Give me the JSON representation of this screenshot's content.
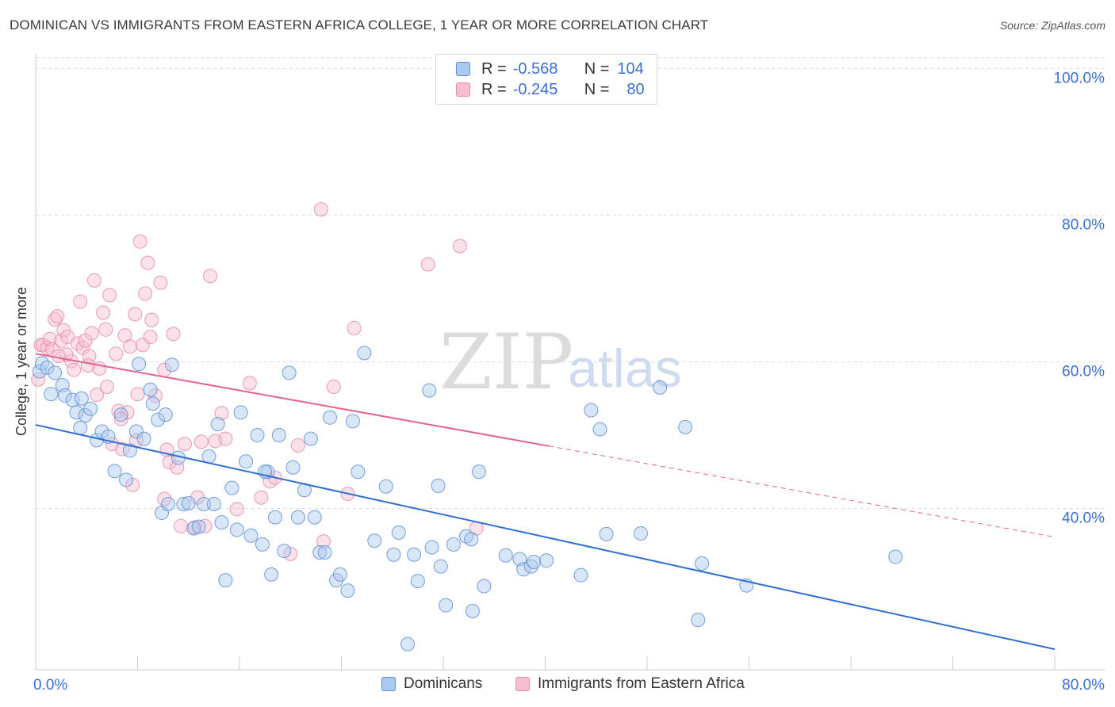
{
  "title": "DOMINICAN VS IMMIGRANTS FROM EASTERN AFRICA COLLEGE, 1 YEAR OR MORE CORRELATION CHART",
  "source": "Source: ZipAtlas.com",
  "watermark": {
    "zip": "ZIP",
    "atlas": "atlas"
  },
  "colors": {
    "blue_fill": "#aac8f0",
    "blue_stroke": "#5d8fd6",
    "blue_line": "#2f6fd3",
    "pink_fill": "#f6bfd0",
    "pink_stroke": "#e889a8",
    "pink_line": "#e5628e",
    "axis_text": "#3a6fd8",
    "grid": "#dddddd"
  },
  "legend": {
    "r_label": "R =",
    "n_label": "N =",
    "rows": [
      {
        "series": "Dominicans",
        "r": "-0.568",
        "n": "104"
      },
      {
        "series": "Immigrants from Eastern Africa",
        "r": "-0.245",
        "n": "80"
      }
    ]
  },
  "chart_data": {
    "type": "scatter",
    "title": "DOMINICAN VS IMMIGRANTS FROM EASTERN AFRICA COLLEGE, 1 YEAR OR MORE CORRELATION CHART",
    "xlabel": "",
    "ylabel": "College, 1 year or more",
    "xlim": [
      0,
      80
    ],
    "ylim": [
      18,
      102
    ],
    "x_tick_labels": [
      "0.0%",
      "80.0%"
    ],
    "y_ticks": [
      40,
      60,
      80,
      100
    ],
    "y_tick_labels": [
      "40.0%",
      "60.0%",
      "80.0%",
      "100.0%"
    ],
    "grid": true,
    "series": [
      {
        "name": "Dominicans",
        "color": "#5d8fd6",
        "trend": {
          "x0": 0,
          "y0": 51.4,
          "x1": 80,
          "y1": 20.8,
          "solid_until": 80
        },
        "points": [
          [
            0.3,
            58.7
          ],
          [
            0.5,
            59.8
          ],
          [
            0.9,
            59.2
          ],
          [
            1.2,
            55.6
          ],
          [
            1.5,
            58.5
          ],
          [
            2.1,
            56.8
          ],
          [
            2.3,
            55.4
          ],
          [
            2.9,
            54.8
          ],
          [
            3.2,
            53.1
          ],
          [
            3.5,
            51.0
          ],
          [
            3.9,
            52.7
          ],
          [
            4.3,
            53.6
          ],
          [
            4.8,
            49.3
          ],
          [
            5.2,
            50.5
          ],
          [
            5.7,
            49.8
          ],
          [
            6.2,
            45.1
          ],
          [
            6.7,
            52.8
          ],
          [
            7.1,
            43.9
          ],
          [
            7.4,
            47.9
          ],
          [
            7.9,
            50.5
          ],
          [
            8.1,
            59.7
          ],
          [
            8.5,
            49.5
          ],
          [
            9.0,
            56.2
          ],
          [
            9.2,
            54.3
          ],
          [
            9.6,
            52.1
          ],
          [
            9.9,
            39.4
          ],
          [
            10.2,
            52.8
          ],
          [
            10.7,
            59.6
          ],
          [
            11.2,
            46.9
          ],
          [
            11.6,
            40.6
          ],
          [
            12.0,
            40.7
          ],
          [
            12.4,
            37.3
          ],
          [
            12.8,
            37.5
          ],
          [
            13.2,
            40.6
          ],
          [
            13.6,
            47.1
          ],
          [
            14.0,
            40.6
          ],
          [
            14.3,
            51.5
          ],
          [
            14.6,
            38.1
          ],
          [
            14.9,
            30.2
          ],
          [
            15.4,
            42.8
          ],
          [
            15.8,
            37.1
          ],
          [
            16.1,
            53.1
          ],
          [
            16.5,
            46.4
          ],
          [
            16.9,
            36.3
          ],
          [
            17.4,
            50.0
          ],
          [
            17.8,
            35.1
          ],
          [
            18.2,
            45.0
          ],
          [
            18.5,
            31.0
          ],
          [
            18.8,
            38.8
          ],
          [
            19.1,
            50.0
          ],
          [
            19.5,
            34.2
          ],
          [
            19.9,
            58.5
          ],
          [
            20.2,
            45.6
          ],
          [
            20.6,
            38.8
          ],
          [
            21.1,
            42.5
          ],
          [
            21.6,
            49.5
          ],
          [
            21.9,
            38.8
          ],
          [
            22.3,
            34.0
          ],
          [
            22.7,
            34.0
          ],
          [
            23.1,
            52.4
          ],
          [
            23.6,
            30.2
          ],
          [
            23.9,
            31.0
          ],
          [
            24.5,
            28.8
          ],
          [
            24.9,
            51.9
          ],
          [
            25.3,
            45.0
          ],
          [
            25.8,
            61.2
          ],
          [
            26.6,
            35.6
          ],
          [
            27.5,
            43.0
          ],
          [
            28.1,
            33.7
          ],
          [
            28.5,
            36.7
          ],
          [
            29.2,
            21.5
          ],
          [
            29.7,
            33.7
          ],
          [
            30.0,
            30.1
          ],
          [
            30.9,
            56.1
          ],
          [
            31.1,
            34.7
          ],
          [
            31.6,
            43.1
          ],
          [
            31.8,
            32.1
          ],
          [
            32.2,
            26.8
          ],
          [
            32.8,
            35.1
          ],
          [
            33.8,
            36.2
          ],
          [
            34.2,
            35.8
          ],
          [
            34.3,
            26.0
          ],
          [
            34.8,
            45.0
          ],
          [
            35.2,
            29.4
          ],
          [
            36.9,
            33.6
          ],
          [
            38.0,
            33.1
          ],
          [
            38.3,
            31.7
          ],
          [
            38.9,
            32.1
          ],
          [
            39.1,
            32.7
          ],
          [
            40.1,
            32.9
          ],
          [
            42.8,
            30.9
          ],
          [
            43.6,
            53.4
          ],
          [
            44.3,
            50.8
          ],
          [
            44.8,
            36.5
          ],
          [
            47.5,
            36.6
          ],
          [
            49.0,
            56.5
          ],
          [
            51.0,
            51.1
          ],
          [
            52.0,
            24.8
          ],
          [
            52.3,
            32.5
          ],
          [
            55.8,
            29.5
          ],
          [
            67.5,
            33.4
          ],
          [
            18.0,
            45.0
          ],
          [
            3.6,
            55.0
          ],
          [
            10.4,
            40.6
          ]
        ]
      },
      {
        "name": "Immigrants from Eastern Africa",
        "color": "#e889a8",
        "trend": {
          "x0": 0,
          "y0": 61.1,
          "x1": 80,
          "y1": 36.1,
          "solid_until": 40.3
        },
        "points": [
          [
            0.2,
            57.6
          ],
          [
            0.4,
            62.3
          ],
          [
            0.6,
            62.3
          ],
          [
            0.9,
            61.9
          ],
          [
            1.1,
            63.1
          ],
          [
            1.3,
            61.7
          ],
          [
            1.5,
            65.8
          ],
          [
            1.7,
            66.2
          ],
          [
            2.0,
            62.9
          ],
          [
            2.2,
            64.3
          ],
          [
            2.5,
            63.4
          ],
          [
            2.8,
            60.1
          ],
          [
            3.0,
            58.9
          ],
          [
            3.3,
            62.5
          ],
          [
            3.5,
            68.2
          ],
          [
            3.7,
            61.9
          ],
          [
            3.9,
            62.9
          ],
          [
            4.2,
            60.8
          ],
          [
            4.4,
            63.9
          ],
          [
            4.6,
            71.1
          ],
          [
            4.8,
            55.5
          ],
          [
            5.0,
            59.1
          ],
          [
            5.3,
            66.7
          ],
          [
            5.5,
            64.4
          ],
          [
            5.8,
            69.1
          ],
          [
            6.0,
            48.8
          ],
          [
            6.3,
            61.1
          ],
          [
            6.5,
            53.3
          ],
          [
            6.8,
            48.1
          ],
          [
            7.0,
            63.6
          ],
          [
            7.2,
            53.1
          ],
          [
            7.4,
            62.1
          ],
          [
            7.6,
            43.2
          ],
          [
            7.8,
            66.5
          ],
          [
            8.0,
            55.6
          ],
          [
            8.2,
            76.4
          ],
          [
            8.4,
            62.3
          ],
          [
            8.6,
            69.3
          ],
          [
            8.8,
            73.5
          ],
          [
            9.1,
            65.7
          ],
          [
            9.4,
            55.4
          ],
          [
            9.8,
            70.8
          ],
          [
            10.1,
            58.9
          ],
          [
            10.3,
            48.0
          ],
          [
            10.5,
            46.3
          ],
          [
            10.8,
            63.8
          ],
          [
            11.1,
            45.6
          ],
          [
            11.4,
            37.6
          ],
          [
            12.5,
            37.4
          ],
          [
            13.0,
            49.1
          ],
          [
            13.3,
            37.6
          ],
          [
            13.7,
            71.7
          ],
          [
            14.1,
            49.2
          ],
          [
            14.6,
            53.0
          ],
          [
            14.9,
            49.5
          ],
          [
            15.8,
            39.9
          ],
          [
            16.8,
            57.1
          ],
          [
            17.7,
            41.5
          ],
          [
            18.4,
            43.7
          ],
          [
            18.8,
            44.2
          ],
          [
            20.0,
            33.8
          ],
          [
            20.6,
            48.6
          ],
          [
            22.4,
            80.8
          ],
          [
            22.6,
            35.5
          ],
          [
            23.4,
            56.6
          ],
          [
            24.5,
            42.0
          ],
          [
            25.0,
            64.6
          ],
          [
            30.8,
            73.3
          ],
          [
            33.3,
            75.8
          ],
          [
            34.6,
            37.3
          ],
          [
            2.4,
            61.0
          ],
          [
            4.1,
            59.5
          ],
          [
            6.7,
            52.2
          ],
          [
            9.0,
            63.4
          ],
          [
            10.1,
            41.3
          ],
          [
            12.7,
            41.5
          ],
          [
            1.8,
            60.8
          ],
          [
            5.6,
            56.6
          ],
          [
            7.9,
            49.3
          ],
          [
            11.7,
            48.8
          ]
        ]
      }
    ]
  }
}
